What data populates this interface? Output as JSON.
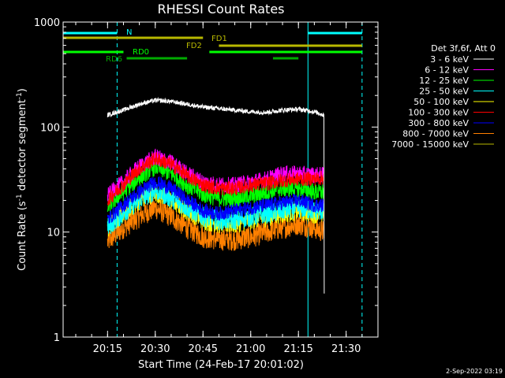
{
  "chart_data": {
    "type": "line",
    "title": "RHESSI Count Rates",
    "xlabel": "Start Time (24-Feb-17 20:01:02)",
    "ylabel_main": "Count Rate (s",
    "ylabel_sup1": "-1",
    "ylabel_mid": " detector segment",
    "ylabel_sup2": "-1",
    "ylabel_end": ")",
    "y_scale": "log",
    "ylim": [
      1,
      1000
    ],
    "xlim": [
      "20:01:02",
      "21:40:00"
    ],
    "y_ticks": [
      {
        "value": 1,
        "label": "1"
      },
      {
        "value": 10,
        "label": "10"
      },
      {
        "value": 100,
        "label": "100"
      },
      {
        "value": 1000,
        "label": "1000"
      }
    ],
    "x_ticks": [
      {
        "value": "20:15",
        "label": "20:15"
      },
      {
        "value": "20:30",
        "label": "20:30"
      },
      {
        "value": "20:45",
        "label": "20:45"
      },
      {
        "value": "21:00",
        "label": "21:00"
      },
      {
        "value": "21:15",
        "label": "21:15"
      },
      {
        "value": "21:30",
        "label": "21:30"
      }
    ],
    "legend_header": "Det 3f,6f, Att 0",
    "legend_position": "right",
    "series": [
      {
        "name": "3 - 6 keV",
        "color": "#ffffff",
        "x": [
          "20:15",
          "20:20",
          "20:25",
          "20:30",
          "20:35",
          "20:40",
          "20:45",
          "20:50",
          "20:55",
          "21:00",
          "21:05",
          "21:10",
          "21:15",
          "21:20",
          "21:23"
        ],
        "y": [
          130,
          145,
          165,
          180,
          175,
          165,
          155,
          150,
          145,
          140,
          138,
          145,
          148,
          140,
          130
        ]
      },
      {
        "name": "6 - 12 keV",
        "color": "#ff00ff",
        "x": [
          "20:15",
          "20:20",
          "20:25",
          "20:30",
          "20:35",
          "20:40",
          "20:45",
          "20:50",
          "20:55",
          "21:00",
          "21:05",
          "21:10",
          "21:15",
          "21:20",
          "21:23"
        ],
        "y": [
          22,
          30,
          42,
          52,
          46,
          36,
          30,
          28,
          28,
          30,
          32,
          36,
          36,
          35,
          35
        ]
      },
      {
        "name": "12 - 25 keV",
        "color": "#00ff00",
        "x": [
          "20:15",
          "20:20",
          "20:25",
          "20:30",
          "20:35",
          "20:40",
          "20:45",
          "20:50",
          "20:55",
          "21:00",
          "21:05",
          "21:10",
          "21:15",
          "21:20",
          "21:23"
        ],
        "y": [
          17,
          24,
          33,
          42,
          36,
          28,
          23,
          21,
          21,
          22,
          24,
          26,
          26,
          24,
          24
        ]
      },
      {
        "name": "25 - 50 keV",
        "color": "#00ffff",
        "x": [
          "20:15",
          "20:20",
          "20:25",
          "20:30",
          "20:35",
          "20:40",
          "20:45",
          "20:50",
          "20:55",
          "21:00",
          "21:05",
          "21:10",
          "21:15",
          "21:20",
          "21:23"
        ],
        "y": [
          11,
          15,
          20,
          25,
          21,
          17,
          14,
          13,
          13,
          14,
          15,
          16,
          17,
          16,
          16
        ]
      },
      {
        "name": "50 - 100 keV",
        "color": "#ffff00",
        "x": [
          "20:15",
          "20:20",
          "20:25",
          "20:30",
          "20:35",
          "20:40",
          "20:45",
          "20:50",
          "20:55",
          "21:00",
          "21:05",
          "21:10",
          "21:15",
          "21:20",
          "21:23"
        ],
        "y": [
          11,
          15,
          20,
          24,
          20,
          16,
          13,
          12,
          12,
          13,
          14,
          15,
          16,
          15,
          15
        ]
      },
      {
        "name": "100 - 300 keV",
        "color": "#ff0000",
        "x": [
          "20:15",
          "20:20",
          "20:25",
          "20:30",
          "20:35",
          "20:40",
          "20:45",
          "20:50",
          "20:55",
          "21:00",
          "21:05",
          "21:10",
          "21:15",
          "21:20",
          "21:23"
        ],
        "y": [
          20,
          28,
          40,
          50,
          44,
          34,
          28,
          26,
          26,
          28,
          29,
          31,
          32,
          32,
          33
        ]
      },
      {
        "name": "300 - 800 keV",
        "color": "#0000ff",
        "x": [
          "20:15",
          "20:20",
          "20:25",
          "20:30",
          "20:35",
          "20:40",
          "20:45",
          "20:50",
          "20:55",
          "21:00",
          "21:05",
          "21:10",
          "21:15",
          "21:20",
          "21:23"
        ],
        "y": [
          13,
          18,
          24,
          30,
          26,
          20,
          16,
          15,
          16,
          17,
          18,
          19,
          20,
          18,
          18
        ]
      },
      {
        "name": "800 - 7000 keV",
        "color": "#ff8000",
        "x": [
          "20:15",
          "20:20",
          "20:25",
          "20:30",
          "20:35",
          "20:40",
          "20:45",
          "20:50",
          "20:55",
          "21:00",
          "21:05",
          "21:10",
          "21:15",
          "21:20",
          "21:23"
        ],
        "y": [
          8,
          11,
          14,
          17,
          14,
          11,
          9,
          8.5,
          8.5,
          9,
          10,
          11,
          12,
          11,
          10
        ]
      },
      {
        "name": "7000 - 15000 keV",
        "color": "#b8b800",
        "x": [],
        "y": []
      }
    ],
    "attenuator_bars": [
      {
        "label": "N",
        "color": "#00ffff",
        "segments": [
          [
            "20:01:02",
            "20:18"
          ],
          [
            "21:18",
            "21:35"
          ]
        ]
      },
      {
        "label": "FD1",
        "color": "#b8b800",
        "segments": [
          [
            "20:01:02",
            "20:45"
          ]
        ]
      },
      {
        "label": "FD2",
        "color": "#b8b800",
        "segments": [
          [
            "20:50",
            "21:35"
          ]
        ]
      },
      {
        "label": "RD0",
        "color": "#00ff00",
        "segments": [
          [
            "20:01:02",
            "20:20"
          ],
          [
            "20:47",
            "21:35"
          ]
        ]
      },
      {
        "label": "RD6",
        "color": "#00aa00",
        "segments": [
          [
            "20:21",
            "20:40"
          ],
          [
            "21:07",
            "21:15"
          ]
        ]
      }
    ],
    "vertical_lines": [
      {
        "x": "20:01:02",
        "color": "#00ffff",
        "style": "solid"
      },
      {
        "x": "20:18",
        "color": "#00ffff",
        "style": "dashed"
      },
      {
        "x": "21:18",
        "color": "#00ffff",
        "style": "solid"
      },
      {
        "x": "21:35",
        "color": "#00ffff",
        "style": "dashed"
      }
    ]
  },
  "footer": {
    "date": "2-Sep-2022 03:19"
  }
}
